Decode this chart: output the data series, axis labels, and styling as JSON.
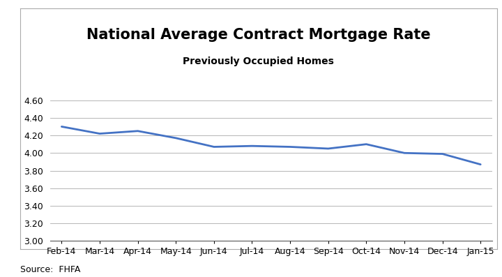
{
  "title": "National Average Contract Mortgage Rate",
  "subtitle": "Previously Occupied Homes",
  "source": "Source:  FHFA",
  "categories": [
    "Feb-14",
    "Mar-14",
    "Apr-14",
    "May-14",
    "Jun-14",
    "Jul-14",
    "Aug-14",
    "Sep-14",
    "Oct-14",
    "Nov-14",
    "Dec-14",
    "Jan-15"
  ],
  "values": [
    4.3,
    4.22,
    4.25,
    4.17,
    4.07,
    4.08,
    4.07,
    4.05,
    4.1,
    4.0,
    3.99,
    3.87
  ],
  "line_color": "#4472C4",
  "line_width": 2.0,
  "ylim": [
    3.0,
    4.7
  ],
  "yticks": [
    3.0,
    3.2,
    3.4,
    3.6,
    3.8,
    4.0,
    4.2,
    4.4,
    4.6
  ],
  "title_fontsize": 15,
  "subtitle_fontsize": 10,
  "tick_fontsize": 9,
  "source_fontsize": 9,
  "background_color": "#ffffff",
  "grid_color": "#aaaaaa",
  "border_color": "#aaaaaa",
  "title_color": "#000000",
  "subtitle_color": "#000000"
}
